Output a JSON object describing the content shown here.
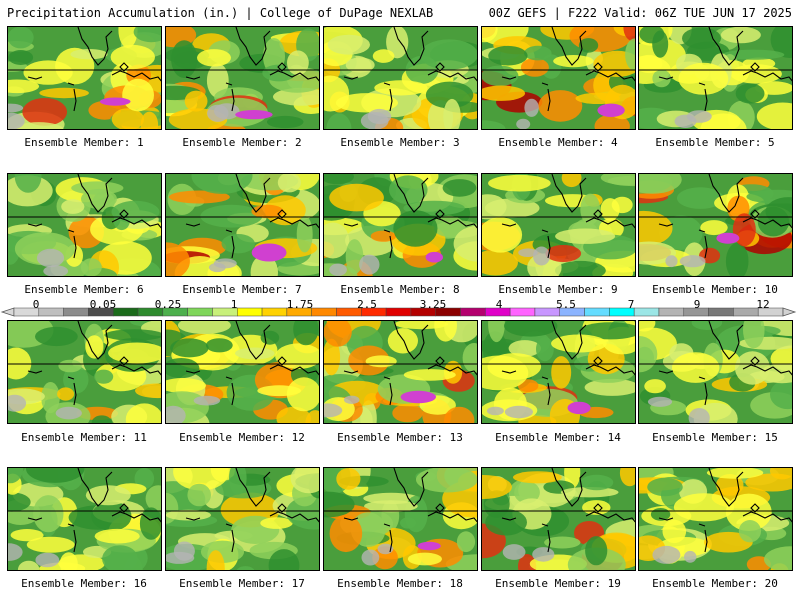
{
  "header": {
    "left_title": "Precipitation Accumulation (in.) | College of DuPage NEXLAB",
    "right_title": "00Z GEFS | F222 Valid: 06Z TUE JUN 17 2025"
  },
  "colorbar": {
    "tick_labels": [
      "0",
      "0.05",
      "0.25",
      "1",
      "1.75",
      "2.5",
      "3.25",
      "4",
      "5.5",
      "7",
      "9",
      "12"
    ],
    "colors": [
      "#d9d9d9",
      "#bfbfbf",
      "#8c8c8c",
      "#4d4d4d",
      "#1b6b1b",
      "#2e8b2e",
      "#4db04d",
      "#7fd65a",
      "#c8f07a",
      "#ffff00",
      "#ffd200",
      "#ffaa00",
      "#ff8800",
      "#ff5a00",
      "#ff2a00",
      "#e00000",
      "#b40000",
      "#8c0000",
      "#b4006e",
      "#e000c8",
      "#ff64ff",
      "#c896ff",
      "#8cb4ff",
      "#64dcff",
      "#00ffff",
      "#9be6e6",
      "#b4b4b4",
      "#969696",
      "#787878",
      "#aaaaaa",
      "#d2d2d2"
    ]
  },
  "members": [
    {
      "label": "Ensemble Member: 1",
      "intensity": 0.55
    },
    {
      "label": "Ensemble Member: 2",
      "intensity": 0.65
    },
    {
      "label": "Ensemble Member: 3",
      "intensity": 0.5
    },
    {
      "label": "Ensemble Member: 4",
      "intensity": 0.7
    },
    {
      "label": "Ensemble Member: 5",
      "intensity": 0.35
    },
    {
      "label": "Ensemble Member: 6",
      "intensity": 0.3
    },
    {
      "label": "Ensemble Member: 7",
      "intensity": 0.6
    },
    {
      "label": "Ensemble Member: 8",
      "intensity": 0.6
    },
    {
      "label": "Ensemble Member: 9",
      "intensity": 0.45
    },
    {
      "label": "Ensemble Member: 10",
      "intensity": 0.75
    },
    {
      "label": "Ensemble Member: 11",
      "intensity": 0.35
    },
    {
      "label": "Ensemble Member: 12",
      "intensity": 0.45
    },
    {
      "label": "Ensemble Member: 13",
      "intensity": 0.65
    },
    {
      "label": "Ensemble Member: 14",
      "intensity": 0.55
    },
    {
      "label": "Ensemble Member: 15",
      "intensity": 0.3
    },
    {
      "label": "Ensemble Member: 16",
      "intensity": 0.35
    },
    {
      "label": "Ensemble Member: 17",
      "intensity": 0.45
    },
    {
      "label": "Ensemble Member: 18",
      "intensity": 0.6
    },
    {
      "label": "Ensemble Member: 19",
      "intensity": 0.5
    },
    {
      "label": "Ensemble Member: 20",
      "intensity": 0.5
    }
  ]
}
